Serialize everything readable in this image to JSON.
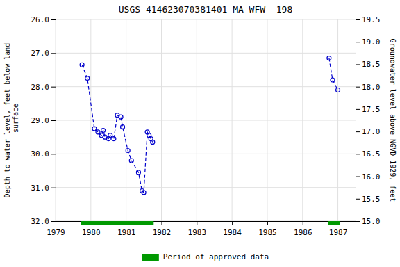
{
  "chart_data": {
    "type": "line",
    "title": "USGS 414623070381401 MA-WFW  198",
    "ylabel": "Depth to water level, feet below land\n surface",
    "y2label": "Groundwater level above NGVD 1929, feet",
    "xlim": [
      1979,
      1987.5
    ],
    "xticks": [
      1979,
      1980,
      1981,
      1982,
      1983,
      1984,
      1985,
      1986,
      1987
    ],
    "ylim": [
      32.0,
      26.0
    ],
    "yticks": [
      {
        "value": 26.0,
        "label": "26.0"
      },
      {
        "value": 27.0,
        "label": "27.0"
      },
      {
        "value": 28.0,
        "label": "28.0"
      },
      {
        "value": 29.0,
        "label": "29.0"
      },
      {
        "value": 30.0,
        "label": "30.0"
      },
      {
        "value": 31.0,
        "label": "31.0"
      },
      {
        "value": 32.0,
        "label": "32.0"
      }
    ],
    "y2lim": [
      15.0,
      19.5
    ],
    "y2ticks": [
      {
        "value": 15.0,
        "label": "15.0"
      },
      {
        "value": 15.5,
        "label": "15.5"
      },
      {
        "value": 16.0,
        "label": "16.0"
      },
      {
        "value": 16.5,
        "label": "16.5"
      },
      {
        "value": 17.0,
        "label": "17.0"
      },
      {
        "value": 17.5,
        "label": "17.5"
      },
      {
        "value": 18.0,
        "label": "18.0"
      },
      {
        "value": 18.5,
        "label": "18.5"
      },
      {
        "value": 19.0,
        "label": "19.0"
      },
      {
        "value": 19.5,
        "label": "19.5"
      }
    ],
    "grid": true,
    "legend": "bottom",
    "series": [
      {
        "color": "#0000cc",
        "marker": "circle",
        "line_style": "dashed",
        "x": [
          1979.75,
          1979.9,
          1980.1,
          1980.2,
          1980.3,
          1980.35,
          1980.4,
          1980.5,
          1980.55,
          1980.65,
          1980.75,
          1980.85,
          1980.9,
          1981.05,
          1981.15,
          1981.35,
          1981.45,
          1981.5,
          1981.6,
          1981.65,
          1981.7,
          1981.75
        ],
        "values": [
          27.35,
          27.75,
          29.25,
          29.35,
          29.45,
          29.3,
          29.5,
          29.55,
          29.45,
          29.55,
          28.85,
          28.9,
          29.2,
          29.9,
          30.2,
          30.55,
          31.1,
          31.15,
          29.35,
          29.45,
          29.55,
          29.65
        ]
      },
      {
        "color": "#0000cc",
        "marker": "circle",
        "line_style": "dashed",
        "x": [
          1986.75,
          1986.85,
          1987.0
        ],
        "values": [
          27.15,
          27.8,
          28.1
        ]
      }
    ],
    "approved_periods": {
      "name": "Period of approved data",
      "color": "#009900",
      "start": [
        1979.72,
        1986.72
      ],
      "end": [
        1981.78,
        1987.05
      ]
    }
  }
}
